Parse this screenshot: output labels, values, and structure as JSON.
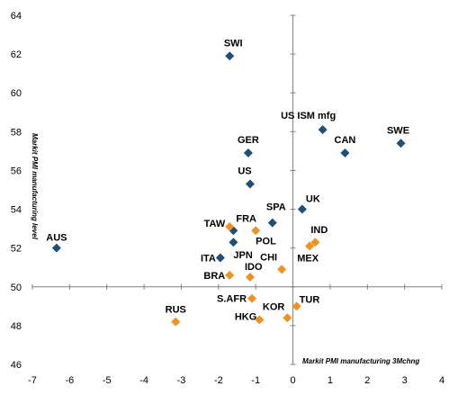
{
  "chart_data": {
    "type": "scatter",
    "xlabel": "Markit PMI manufacturing 3Mchng",
    "ylabel": "Markit PMI manufacturing level",
    "xlim": [
      -7,
      4
    ],
    "ylim": [
      46,
      64
    ],
    "xticks": [
      -7,
      -6,
      -5,
      -4,
      -3,
      -2,
      -1,
      0,
      1,
      2,
      3,
      4
    ],
    "yticks": [
      46,
      48,
      50,
      52,
      54,
      56,
      58,
      60,
      62,
      64
    ],
    "grid": false,
    "legend": "none",
    "colors": {
      "developed": "#1f4e79",
      "emerging": "#f0921e"
    },
    "points": [
      {
        "label": "SWI",
        "x": -1.7,
        "y": 61.9,
        "group": "developed"
      },
      {
        "label": "US ISM mfg",
        "x": 0.8,
        "y": 58.1,
        "group": "developed"
      },
      {
        "label": "SWE",
        "x": 2.9,
        "y": 57.4,
        "group": "developed"
      },
      {
        "label": "CAN",
        "x": 1.4,
        "y": 56.9,
        "group": "developed"
      },
      {
        "label": "GER",
        "x": -1.2,
        "y": 56.9,
        "group": "developed"
      },
      {
        "label": "US",
        "x": -1.15,
        "y": 55.3,
        "group": "developed"
      },
      {
        "label": "UK",
        "x": 0.25,
        "y": 54.0,
        "group": "developed"
      },
      {
        "label": "SPA",
        "x": -0.55,
        "y": 53.3,
        "group": "developed"
      },
      {
        "label": "FRA",
        "x": -1.6,
        "y": 52.9,
        "group": "developed"
      },
      {
        "label": "JPN",
        "x": -1.6,
        "y": 52.3,
        "group": "developed"
      },
      {
        "label": "AUS",
        "x": -6.35,
        "y": 52.0,
        "group": "developed"
      },
      {
        "label": "ITA",
        "x": -1.95,
        "y": 51.5,
        "group": "developed"
      },
      {
        "label": "TAW",
        "x": -1.7,
        "y": 53.1,
        "group": "emerging"
      },
      {
        "label": "POL",
        "x": -1.0,
        "y": 52.9,
        "group": "emerging"
      },
      {
        "label": "IND",
        "x": 0.6,
        "y": 52.3,
        "group": "emerging"
      },
      {
        "label": "MEX",
        "x": 0.45,
        "y": 52.1,
        "group": "emerging"
      },
      {
        "label": "CHI",
        "x": -0.3,
        "y": 50.9,
        "group": "emerging"
      },
      {
        "label": "BRA",
        "x": -1.7,
        "y": 50.6,
        "group": "emerging"
      },
      {
        "label": "IDO",
        "x": -1.15,
        "y": 50.5,
        "group": "emerging"
      },
      {
        "label": "S.AFR",
        "x": -1.1,
        "y": 49.4,
        "group": "emerging"
      },
      {
        "label": "TUR",
        "x": 0.1,
        "y": 49.0,
        "group": "emerging"
      },
      {
        "label": "HKG",
        "x": -0.9,
        "y": 48.3,
        "group": "emerging"
      },
      {
        "label": "KOR",
        "x": -0.15,
        "y": 48.4,
        "group": "emerging"
      },
      {
        "label": "RUS",
        "x": -3.15,
        "y": 48.2,
        "group": "emerging"
      }
    ]
  }
}
